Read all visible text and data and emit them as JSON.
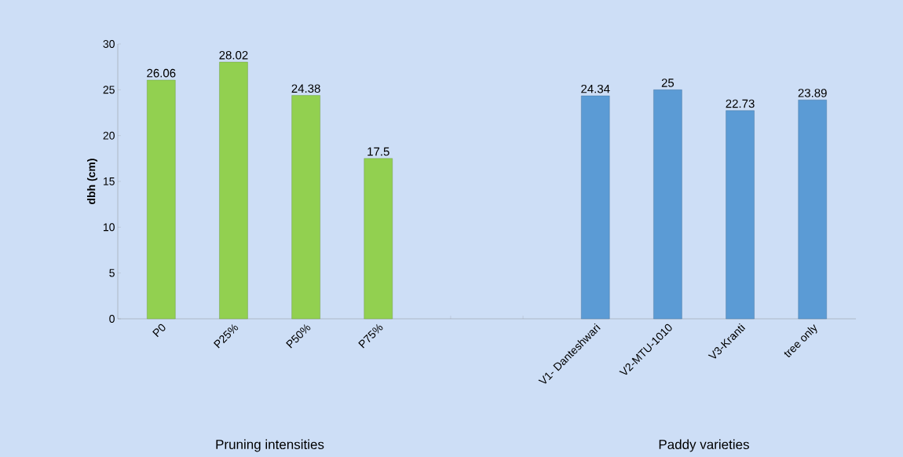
{
  "chart_data": {
    "type": "bar",
    "ylabel": "dbh (cm)",
    "categories": [
      "P0",
      "P25%",
      "P50%",
      "P75%",
      null,
      null,
      "V1- Danteshwari",
      "V2-MTU-1010",
      "V3-Kranti",
      "tree only"
    ],
    "values": [
      26.06,
      28.02,
      24.38,
      17.5,
      null,
      null,
      24.34,
      25,
      22.73,
      23.89
    ],
    "colors": [
      "#92d050",
      "#92d050",
      "#92d050",
      "#92d050",
      null,
      null,
      "#5b9bd5",
      "#5b9bd5",
      "#5b9bd5",
      "#5b9bd5"
    ],
    "ylim": [
      0,
      30
    ],
    "yticks": [
      0,
      5,
      10,
      15,
      20,
      25,
      30
    ],
    "grid": false,
    "data_labels": true,
    "annotations": [
      "Pruning intensities",
      "Paddy varieties"
    ]
  }
}
